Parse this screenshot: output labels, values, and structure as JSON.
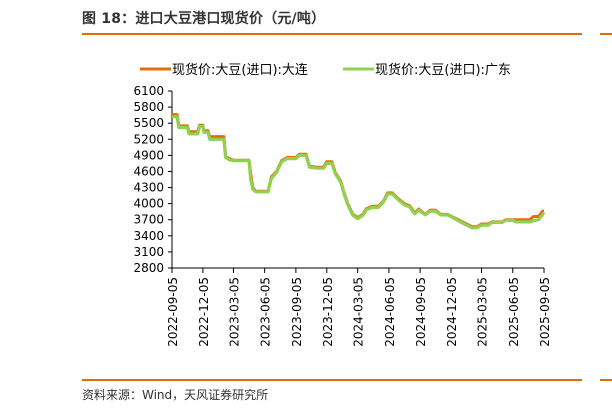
{
  "header": {
    "title": "图 18：进口大豆港口现货价（元/吨）"
  },
  "footer": {
    "source": "资料来源：Wind，天风证券研究所"
  },
  "colors": {
    "accent": "#e36c0a",
    "series_dalian": "#e46c0a",
    "series_guangdong": "#92d050"
  },
  "chart_data": {
    "type": "line",
    "title": "",
    "xlabel": "",
    "ylabel": "",
    "ylim": [
      2800,
      6100
    ],
    "yticks": [
      2800,
      3100,
      3400,
      3700,
      4000,
      4300,
      4600,
      4900,
      5200,
      5500,
      5800,
      6100
    ],
    "xticks": [
      "2022-09-05",
      "2022-12-05",
      "2023-03-05",
      "2023-06-05",
      "2023-09-05",
      "2023-12-05",
      "2024-03-05",
      "2024-06-05",
      "2024-09-05",
      "2024-12-05",
      "2025-03-05",
      "2025-06-05",
      "2025-09-05"
    ],
    "legend": "top",
    "grid": false,
    "series": [
      {
        "name": "现货价:大豆(进口):大连",
        "color": "#e46c0a",
        "points": [
          [
            "2022-09-05",
            5660
          ],
          [
            "2022-09-20",
            5660
          ],
          [
            "2022-09-25",
            5450
          ],
          [
            "2022-10-20",
            5450
          ],
          [
            "2022-10-25",
            5340
          ],
          [
            "2022-11-20",
            5340
          ],
          [
            "2022-11-25",
            5460
          ],
          [
            "2022-12-05",
            5460
          ],
          [
            "2022-12-08",
            5360
          ],
          [
            "2022-12-20",
            5360
          ],
          [
            "2022-12-25",
            5250
          ],
          [
            "2023-02-05",
            5250
          ],
          [
            "2023-02-10",
            4880
          ],
          [
            "2023-02-20",
            4840
          ],
          [
            "2023-03-05",
            4810
          ],
          [
            "2023-04-20",
            4810
          ],
          [
            "2023-04-25",
            4550
          ],
          [
            "2023-05-01",
            4300
          ],
          [
            "2023-05-10",
            4230
          ],
          [
            "2023-06-15",
            4230
          ],
          [
            "2023-06-25",
            4500
          ],
          [
            "2023-07-10",
            4600
          ],
          [
            "2023-07-25",
            4800
          ],
          [
            "2023-08-10",
            4860
          ],
          [
            "2023-09-05",
            4860
          ],
          [
            "2023-09-15",
            4920
          ],
          [
            "2023-10-05",
            4920
          ],
          [
            "2023-10-15",
            4700
          ],
          [
            "2023-11-05",
            4680
          ],
          [
            "2023-11-25",
            4680
          ],
          [
            "2023-12-05",
            4780
          ],
          [
            "2023-12-20",
            4780
          ],
          [
            "2023-12-30",
            4580
          ],
          [
            "2024-01-15",
            4420
          ],
          [
            "2024-01-25",
            4200
          ],
          [
            "2024-02-05",
            4000
          ],
          [
            "2024-02-20",
            3800
          ],
          [
            "2024-03-05",
            3740
          ],
          [
            "2024-03-20",
            3800
          ],
          [
            "2024-03-30",
            3900
          ],
          [
            "2024-04-15",
            3950
          ],
          [
            "2024-05-05",
            3950
          ],
          [
            "2024-05-20",
            4050
          ],
          [
            "2024-06-01",
            4200
          ],
          [
            "2024-06-15",
            4200
          ],
          [
            "2024-07-01",
            4100
          ],
          [
            "2024-07-20",
            4000
          ],
          [
            "2024-08-05",
            3960
          ],
          [
            "2024-08-20",
            3830
          ],
          [
            "2024-09-01",
            3900
          ],
          [
            "2024-09-20",
            3800
          ],
          [
            "2024-10-05",
            3880
          ],
          [
            "2024-10-20",
            3880
          ],
          [
            "2024-11-05",
            3800
          ],
          [
            "2024-11-25",
            3800
          ],
          [
            "2024-12-10",
            3750
          ],
          [
            "2025-01-01",
            3680
          ],
          [
            "2025-01-20",
            3620
          ],
          [
            "2025-02-05",
            3570
          ],
          [
            "2025-02-20",
            3570
          ],
          [
            "2025-03-05",
            3620
          ],
          [
            "2025-03-25",
            3620
          ],
          [
            "2025-04-05",
            3660
          ],
          [
            "2025-05-05",
            3660
          ],
          [
            "2025-05-15",
            3700
          ],
          [
            "2025-06-05",
            3700
          ],
          [
            "2025-06-15",
            3700
          ],
          [
            "2025-07-25",
            3700
          ],
          [
            "2025-08-05",
            3760
          ],
          [
            "2025-08-20",
            3760
          ],
          [
            "2025-09-01",
            3860
          ],
          [
            "2025-09-05",
            3860
          ]
        ]
      },
      {
        "name": "现货价:大豆(进口):广东",
        "color": "#92d050",
        "points": [
          [
            "2022-09-05",
            5620
          ],
          [
            "2022-09-20",
            5620
          ],
          [
            "2022-09-25",
            5420
          ],
          [
            "2022-10-20",
            5420
          ],
          [
            "2022-10-25",
            5300
          ],
          [
            "2022-11-20",
            5300
          ],
          [
            "2022-11-25",
            5440
          ],
          [
            "2022-12-05",
            5440
          ],
          [
            "2022-12-08",
            5330
          ],
          [
            "2022-12-20",
            5330
          ],
          [
            "2022-12-25",
            5200
          ],
          [
            "2023-02-05",
            5200
          ],
          [
            "2023-02-10",
            4860
          ],
          [
            "2023-02-20",
            4820
          ],
          [
            "2023-03-05",
            4800
          ],
          [
            "2023-04-20",
            4800
          ],
          [
            "2023-04-25",
            4450
          ],
          [
            "2023-05-01",
            4270
          ],
          [
            "2023-05-10",
            4220
          ],
          [
            "2023-06-15",
            4220
          ],
          [
            "2023-06-25",
            4470
          ],
          [
            "2023-07-10",
            4580
          ],
          [
            "2023-07-25",
            4780
          ],
          [
            "2023-08-10",
            4840
          ],
          [
            "2023-09-05",
            4840
          ],
          [
            "2023-09-15",
            4900
          ],
          [
            "2023-10-05",
            4900
          ],
          [
            "2023-10-15",
            4680
          ],
          [
            "2023-11-05",
            4660
          ],
          [
            "2023-11-25",
            4660
          ],
          [
            "2023-12-05",
            4750
          ],
          [
            "2023-12-20",
            4750
          ],
          [
            "2023-12-30",
            4560
          ],
          [
            "2024-01-15",
            4400
          ],
          [
            "2024-01-25",
            4180
          ],
          [
            "2024-02-05",
            3980
          ],
          [
            "2024-02-20",
            3780
          ],
          [
            "2024-03-05",
            3720
          ],
          [
            "2024-03-20",
            3780
          ],
          [
            "2024-03-30",
            3880
          ],
          [
            "2024-04-15",
            3930
          ],
          [
            "2024-05-05",
            3930
          ],
          [
            "2024-05-20",
            4030
          ],
          [
            "2024-06-01",
            4180
          ],
          [
            "2024-06-15",
            4180
          ],
          [
            "2024-07-01",
            4080
          ],
          [
            "2024-07-20",
            3980
          ],
          [
            "2024-08-05",
            3940
          ],
          [
            "2024-08-20",
            3810
          ],
          [
            "2024-09-01",
            3880
          ],
          [
            "2024-09-20",
            3790
          ],
          [
            "2024-10-05",
            3860
          ],
          [
            "2024-10-20",
            3860
          ],
          [
            "2024-11-05",
            3790
          ],
          [
            "2024-11-25",
            3790
          ],
          [
            "2024-12-10",
            3740
          ],
          [
            "2025-01-01",
            3660
          ],
          [
            "2025-01-20",
            3600
          ],
          [
            "2025-02-05",
            3550
          ],
          [
            "2025-02-20",
            3550
          ],
          [
            "2025-03-05",
            3600
          ],
          [
            "2025-03-25",
            3600
          ],
          [
            "2025-04-05",
            3650
          ],
          [
            "2025-05-05",
            3650
          ],
          [
            "2025-05-15",
            3690
          ],
          [
            "2025-06-05",
            3690
          ],
          [
            "2025-06-15",
            3660
          ],
          [
            "2025-07-25",
            3660
          ],
          [
            "2025-08-05",
            3680
          ],
          [
            "2025-08-20",
            3700
          ],
          [
            "2025-09-01",
            3800
          ],
          [
            "2025-09-05",
            3840
          ]
        ]
      }
    ]
  }
}
